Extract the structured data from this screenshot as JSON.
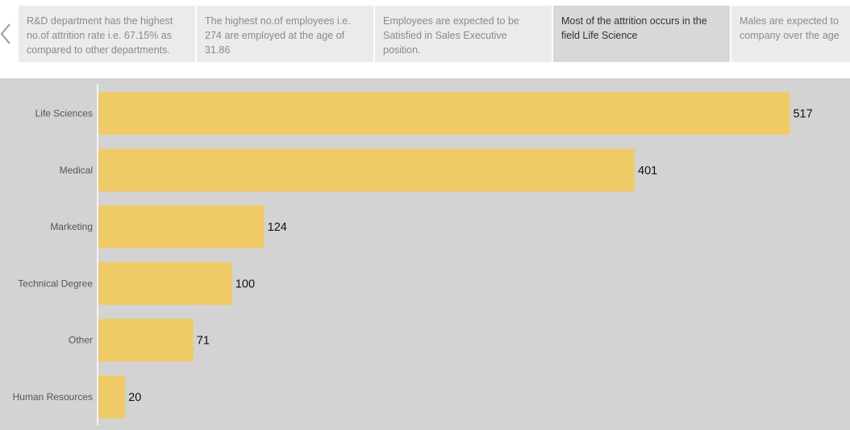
{
  "story": {
    "points": [
      {
        "text": "R&D department has the highest no.of attrition rate i.e. 67.15% as compared to other departments.",
        "active": false
      },
      {
        "text": "The highest no.of employees i.e. 274 are employed at the age of 31.86",
        "active": false
      },
      {
        "text": "Employees are expected to be Satisfied in Sales Executive position.",
        "active": false
      },
      {
        "text": "Most of the attrition occurs in the field Life Science",
        "active": true
      },
      {
        "text": "Males are expected to company over the age",
        "active": false
      }
    ]
  },
  "colors": {
    "bar": "#efcb68",
    "background": "#d3d3d3",
    "axis": "#ffffff"
  },
  "icons": {
    "prev": "chevron-left-icon"
  },
  "chart_data": {
    "type": "bar",
    "orientation": "horizontal",
    "categories": [
      "Life Sciences",
      "Medical",
      "Marketing",
      "Technical Degree",
      "Other",
      "Human Resources"
    ],
    "values": [
      517,
      401,
      124,
      100,
      71,
      20
    ],
    "value_labels": [
      "517",
      "401",
      "124",
      "100",
      "71",
      "20"
    ],
    "xlim": [
      0,
      530
    ],
    "grid": false,
    "legend": "none"
  }
}
